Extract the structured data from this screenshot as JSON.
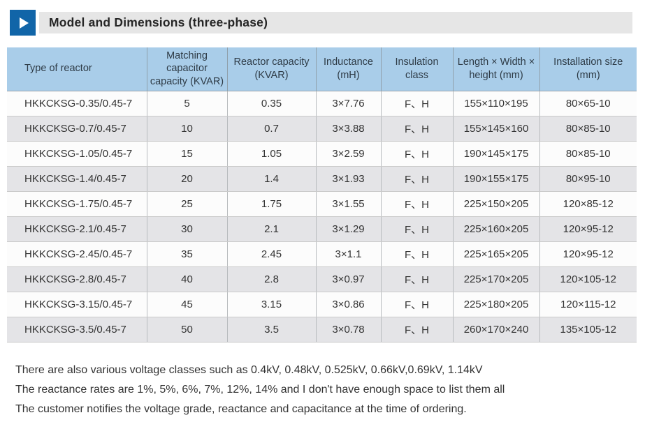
{
  "header": {
    "icon": "play-triangle",
    "title": "Model and Dimensions (three-phase)"
  },
  "table": {
    "columns": [
      "Type of reactor",
      "Matching capacitor capacity (KVAR)",
      "Reactor capacity (KVAR)",
      "Inductance (mH)",
      "Insulation class",
      "Length × Width × height (mm)",
      "Installation size (mm)"
    ],
    "rows": [
      [
        "HKKCKSG-0.35/0.45-7",
        "5",
        "0.35",
        "3×7.76",
        "F、H",
        "155×110×195",
        "80×65-10"
      ],
      [
        "HKKCKSG-0.7/0.45-7",
        "10",
        "0.7",
        "3×3.88",
        "F、H",
        "155×145×160",
        "80×85-10"
      ],
      [
        "HKKCKSG-1.05/0.45-7",
        "15",
        "1.05",
        "3×2.59",
        "F、H",
        "190×145×175",
        "80×85-10"
      ],
      [
        "HKKCKSG-1.4/0.45-7",
        "20",
        "1.4",
        "3×1.93",
        "F、H",
        "190×155×175",
        "80×95-10"
      ],
      [
        "HKKCKSG-1.75/0.45-7",
        "25",
        "1.75",
        "3×1.55",
        "F、H",
        "225×150×205",
        "120×85-12"
      ],
      [
        "HKKCKSG-2.1/0.45-7",
        "30",
        "2.1",
        "3×1.29",
        "F、H",
        "225×160×205",
        "120×95-12"
      ],
      [
        "HKKCKSG-2.45/0.45-7",
        "35",
        "2.45",
        "3×1.1",
        "F、H",
        "225×165×205",
        "120×95-12"
      ],
      [
        "HKKCKSG-2.8/0.45-7",
        "40",
        "2.8",
        "3×0.97",
        "F、H",
        "225×170×205",
        "120×105-12"
      ],
      [
        "HKKCKSG-3.15/0.45-7",
        "45",
        "3.15",
        "3×0.86",
        "F、H",
        "225×180×205",
        "120×115-12"
      ],
      [
        "HKKCKSG-3.5/0.45-7",
        "50",
        "3.5",
        "3×0.78",
        "F、H",
        "260×170×240",
        "135×105-12"
      ]
    ]
  },
  "notes": [
    "There are also various voltage classes such as 0.4kV, 0.48kV, 0.525kV, 0.66kV,0.69kV, 1.14kV",
    "The reactance rates are 1%, 5%, 6%, 7%, 12%, 14% and I don't have enough space to list them all",
    "The customer notifies the voltage grade, reactance and capacitance at the time of ordering."
  ],
  "colors": {
    "accent_blue": "#1165A8",
    "title_bar_bg": "#E6E6E6",
    "table_header_bg": "#A9CDE9",
    "row_alt_bg": "#E4E4E7"
  }
}
